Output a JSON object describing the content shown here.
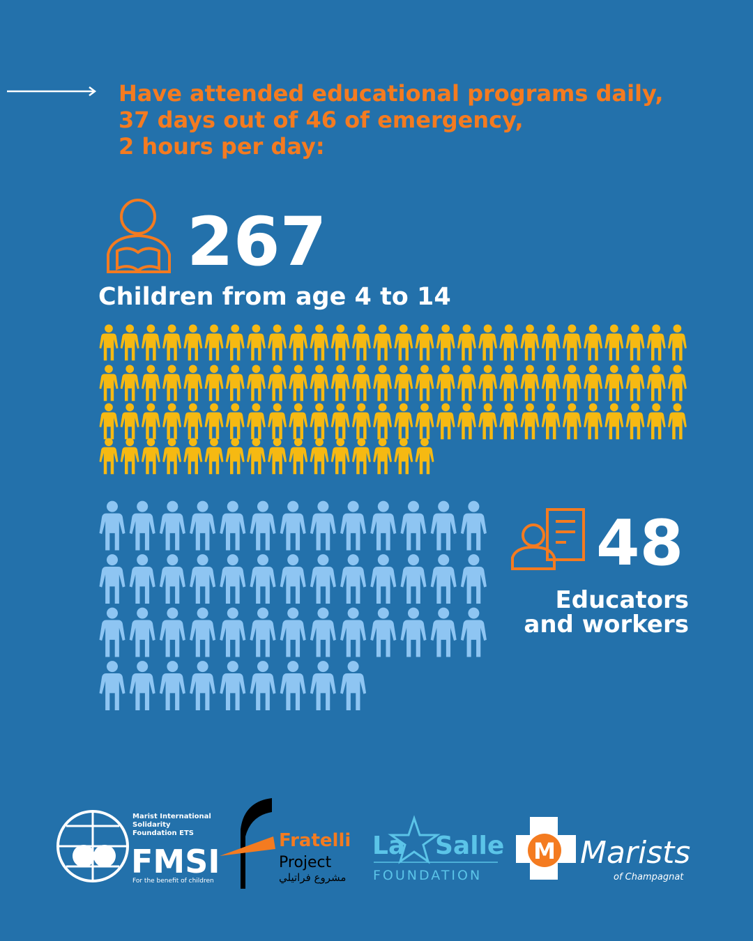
{
  "header": {
    "text_lines": [
      "Have attended educational programs daily,",
      "37 days out of 46 of emergency,",
      "2 hours per day:"
    ]
  },
  "children": {
    "value": 267,
    "label": "Children from age 4 to 14"
  },
  "educators": {
    "value": 48,
    "label_lines": [
      "Educators",
      "and workers"
    ]
  },
  "logos": {
    "fmsi": {
      "lines": [
        "Marist International",
        "Solidarity",
        "Foundation ETS"
      ],
      "name": "FMSI",
      "tagline": "For the benefit of children"
    },
    "fratelli": {
      "name": "Fratelli",
      "sub": "Project",
      "arabic": "مشروع فراتيلي"
    },
    "lasalle": {
      "name_left": "La",
      "name_right": "Salle",
      "sub": "FOUNDATION"
    },
    "marists": {
      "initial": "M",
      "name": "Marists",
      "sub": "of Champagnat"
    }
  }
}
